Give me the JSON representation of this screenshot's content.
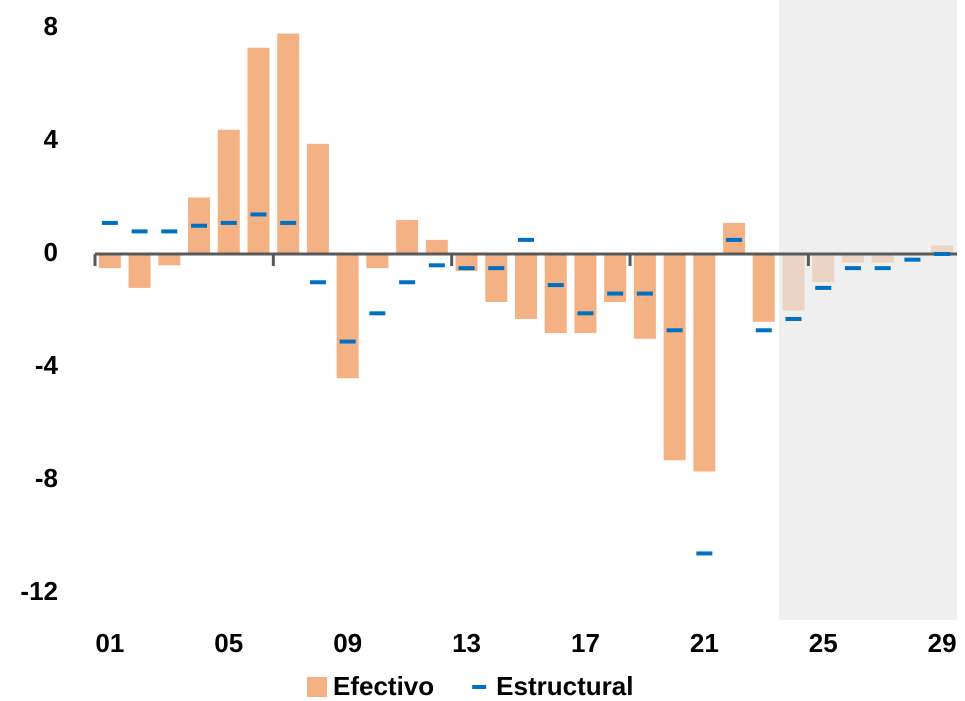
{
  "chart_data": {
    "type": "bar",
    "categories": [
      "01",
      null,
      null,
      null,
      "05",
      null,
      null,
      null,
      "09",
      null,
      null,
      null,
      "13",
      null,
      null,
      null,
      "17",
      null,
      null,
      null,
      "21",
      null,
      null,
      null,
      "25",
      null,
      null,
      null,
      "29"
    ],
    "series": [
      {
        "name": "Efectivo",
        "type": "bar",
        "color": "#f4b183",
        "values": [
          -0.5,
          -1.2,
          -0.4,
          2.0,
          4.4,
          7.3,
          7.8,
          3.9,
          -4.4,
          -0.5,
          1.2,
          0.5,
          -0.6,
          -1.7,
          -2.3,
          -2.8,
          -2.8,
          -1.7,
          -3.0,
          -7.3,
          -7.7,
          1.1,
          -2.4,
          -2.0,
          -1.0,
          -0.3,
          -0.3,
          0,
          0.3
        ]
      },
      {
        "name": "Estructural",
        "type": "dash",
        "color": "#0070c0",
        "values": [
          1.1,
          0.8,
          0.8,
          1.0,
          1.1,
          1.4,
          1.1,
          -1.0,
          -3.1,
          -2.1,
          -1.0,
          -0.4,
          -0.5,
          -0.5,
          0.5,
          -1.1,
          -2.1,
          -1.4,
          -1.4,
          -2.7,
          -10.6,
          0.5,
          -2.7,
          -2.3,
          -1.2,
          -0.5,
          -0.5,
          -0.2,
          0.0
        ]
      }
    ],
    "ylim": [
      -12,
      8
    ],
    "yticks": [
      8,
      4,
      0,
      -4,
      -8,
      -12
    ],
    "legend": "bottom"
  }
}
